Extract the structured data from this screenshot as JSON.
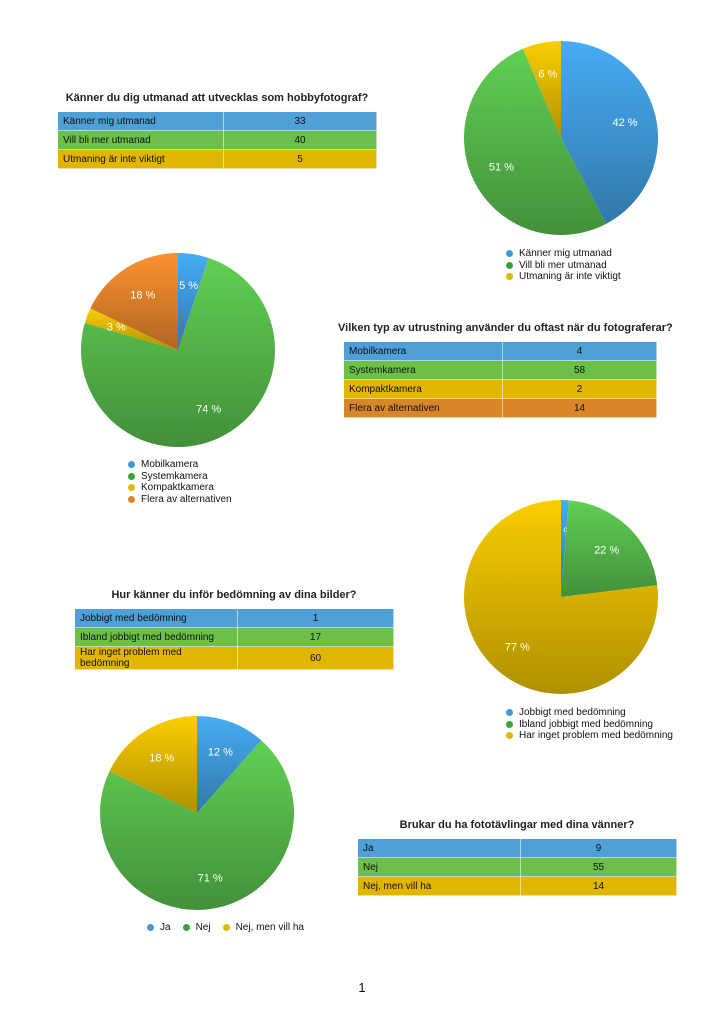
{
  "colors": {
    "blue": "#3f9ad9",
    "green": "#56b94a",
    "yellow": "#e0b800",
    "orange": "#e2822a"
  },
  "chart_data": [
    {
      "type": "pie",
      "title": "Känner du dig utmanad att utvecklas som hobbyfotograf?",
      "categories": [
        "Känner mig utmanad",
        "Vill bli mer utmanad",
        "Utmaning är inte viktigt"
      ],
      "values": [
        33,
        40,
        5
      ],
      "percent_labels": [
        "42 %",
        "51 %",
        "6 %"
      ],
      "colors": [
        "#3f9ad9",
        "#56b94a",
        "#e0b800"
      ],
      "legend": "bottom"
    },
    {
      "type": "pie",
      "title": "Vilken typ av utrustning använder du oftast när du fotograferar?",
      "categories": [
        "Mobilkamera",
        "Systemkamera",
        "Kompaktkamera",
        "Flera av alternativen"
      ],
      "values": [
        4,
        58,
        2,
        14
      ],
      "percent_labels": [
        "5 %",
        "74 %",
        "3 %",
        "18 %"
      ],
      "colors": [
        "#3f9ad9",
        "#56b94a",
        "#e0b800",
        "#e2822a"
      ],
      "legend": "bottom"
    },
    {
      "type": "pie",
      "title": "Hur känner du inför bedömning av dina bilder?",
      "categories": [
        "Jobbigt med bedömning",
        "Ibland jobbigt med bedömning",
        "Har inget problem med bedömning"
      ],
      "values": [
        1,
        17,
        60
      ],
      "percent_labels": [
        "1 %",
        "22 %",
        "77 %"
      ],
      "colors": [
        "#3f9ad9",
        "#56b94a",
        "#e0b800"
      ],
      "legend": "bottom"
    },
    {
      "type": "pie",
      "title": "Brukar du ha fototävlingar med dina vänner?",
      "categories": [
        "Ja",
        "Nej",
        "Nej, men vill ha"
      ],
      "values": [
        9,
        55,
        14
      ],
      "percent_labels": [
        "12 %",
        "71 %",
        "18 %"
      ],
      "colors": [
        "#3f9ad9",
        "#56b94a",
        "#e0b800"
      ],
      "legend": "bottom"
    }
  ],
  "page_number": "1"
}
